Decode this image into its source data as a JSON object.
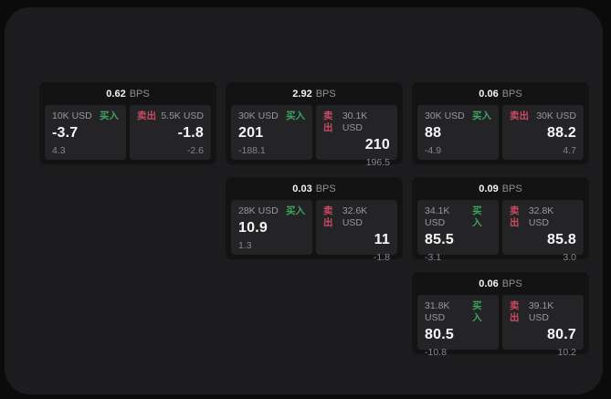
{
  "labels": {
    "bps_unit": "BPS",
    "buy": "买入",
    "sell": "卖出"
  },
  "colors": {
    "buy": "#3da35f",
    "sell": "#c94a63",
    "panel_background": "#1c1c1e",
    "card_background": "#131314",
    "tile_background": "#242427",
    "outer_background": "#0b0b0c"
  },
  "cards": [
    {
      "bps": "0.62",
      "buy": {
        "amount": "10K USD",
        "price": "-3.7",
        "change": "4.3"
      },
      "sell": {
        "amount": "5.5K USD",
        "price": "-1.8",
        "change": "-2.6"
      }
    },
    {
      "bps": "2.92",
      "buy": {
        "amount": "30K USD",
        "price": "201",
        "change": "-188.1"
      },
      "sell": {
        "amount": "30.1K USD",
        "price": "210",
        "change": "196.5"
      }
    },
    {
      "bps": "0.06",
      "buy": {
        "amount": "30K USD",
        "price": "88",
        "change": "-4.9"
      },
      "sell": {
        "amount": "30K USD",
        "price": "88.2",
        "change": "4.7"
      }
    },
    {
      "bps": "0.03",
      "buy": {
        "amount": "28K USD",
        "price": "10.9",
        "change": "1.3"
      },
      "sell": {
        "amount": "32.6K USD",
        "price": "11",
        "change": "-1.8"
      }
    },
    {
      "bps": "0.09",
      "buy": {
        "amount": "34.1K USD",
        "price": "85.5",
        "change": "-3.1"
      },
      "sell": {
        "amount": "32.8K USD",
        "price": "85.8",
        "change": "3.0"
      }
    },
    {
      "bps": "0.06",
      "buy": {
        "amount": "31.8K USD",
        "price": "80.5",
        "change": "-10.8"
      },
      "sell": {
        "amount": "39.1K USD",
        "price": "80.7",
        "change": "10.2"
      }
    }
  ]
}
